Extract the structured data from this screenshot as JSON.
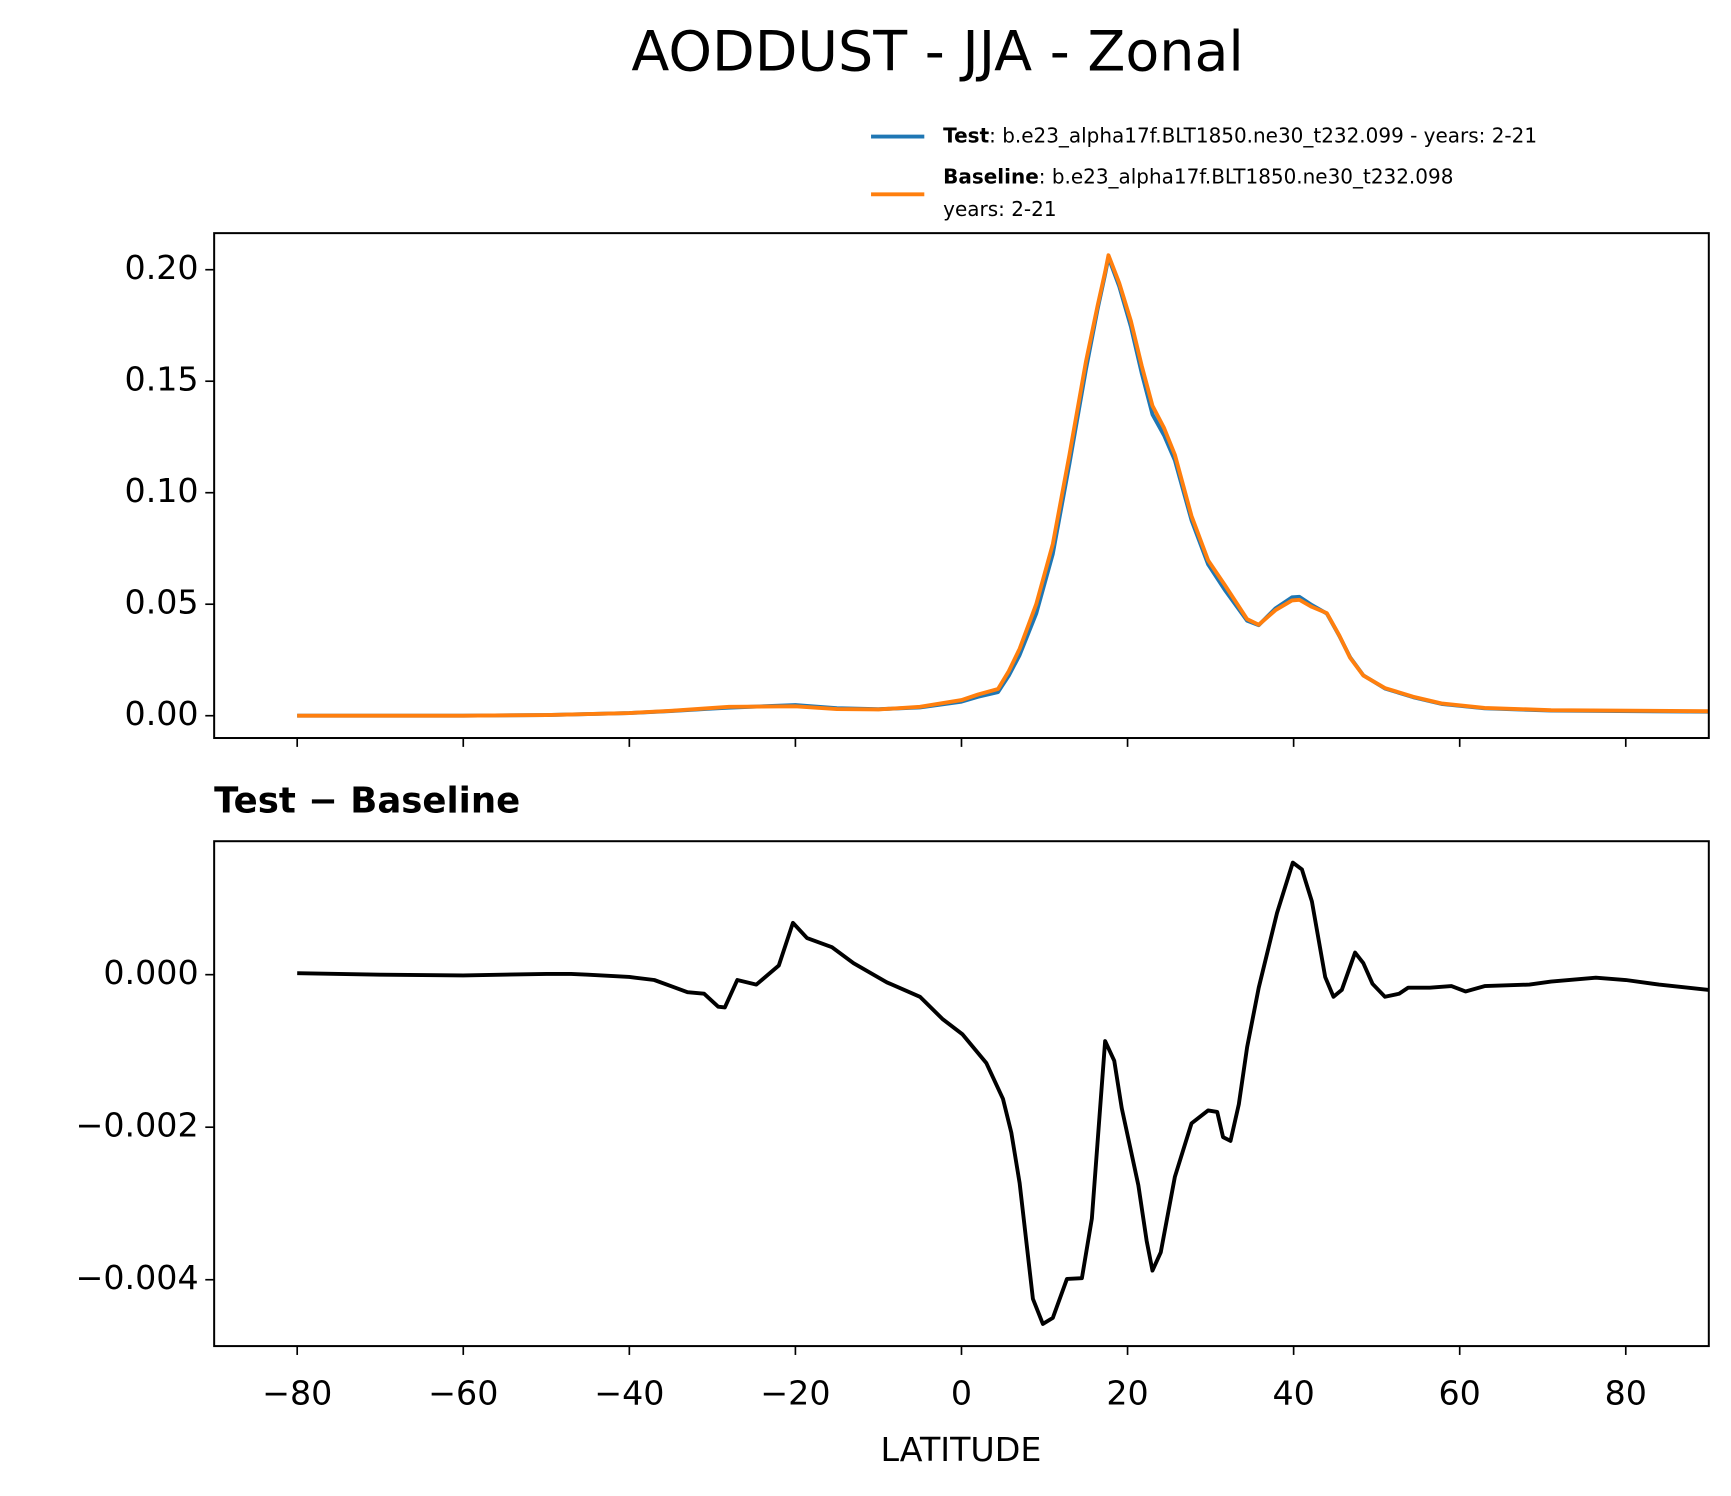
{
  "chart_data": [
    {
      "type": "line",
      "title": "AODDUST - JJA - Zonal",
      "x": [
        -80,
        -60,
        -50,
        -40,
        -35,
        -30,
        -28,
        -20,
        -15,
        -10,
        -5,
        0,
        2,
        4.4,
        5.7,
        7,
        9,
        11,
        13,
        15,
        16.4,
        17.3,
        17.7,
        19,
        20.4,
        21.7,
        23,
        24.4,
        25.7,
        27.7,
        29.7,
        31.7,
        34.4,
        35.8,
        37.8,
        39.8,
        40.7,
        42.2,
        44,
        45.5,
        46.8,
        48.4,
        51,
        54.4,
        57.8,
        63,
        71,
        90
      ],
      "series": [
        {
          "name": "Test",
          "description": [
            ": b.e23_alpha17f.BLT1850.ne30_t232.099 - years: 2-21"
          ],
          "color": "#1f77b4",
          "values": [
            0,
            0,
            0.0003,
            0.0012,
            0.0021,
            0.0032,
            0.0036,
            0.0048,
            0.0034,
            0.0029,
            0.0037,
            0.0063,
            0.0085,
            0.0106,
            0.018,
            0.0272,
            0.0458,
            0.0726,
            0.113,
            0.1555,
            0.1825,
            0.198,
            0.2055,
            0.1925,
            0.1745,
            0.1537,
            0.1351,
            0.1257,
            0.1145,
            0.0877,
            0.0679,
            0.0565,
            0.0426,
            0.0406,
            0.0481,
            0.0531,
            0.0533,
            0.0496,
            0.0458,
            0.0358,
            0.0262,
            0.0181,
            0.0122,
            0.0083,
            0.0053,
            0.0033,
            0.0023,
            0.0018
          ]
        },
        {
          "name": "Baseline",
          "description": [
            ": b.e23_alpha17f.BLT1850.ne30_t232.098",
            "years: 2-21"
          ],
          "color": "#ff7f0e",
          "values": [
            0,
            0,
            0.0003,
            0.0012,
            0.0022,
            0.0035,
            0.004,
            0.0042,
            0.003,
            0.0028,
            0.004,
            0.007,
            0.0095,
            0.012,
            0.02,
            0.03,
            0.05,
            0.077,
            0.117,
            0.159,
            0.184,
            0.199,
            0.2065,
            0.194,
            0.177,
            0.157,
            0.139,
            0.129,
            0.117,
            0.0896,
            0.0697,
            0.0587,
            0.0433,
            0.0408,
            0.0473,
            0.0517,
            0.052,
            0.0488,
            0.046,
            0.036,
            0.026,
            0.018,
            0.0124,
            0.0085,
            0.0055,
            0.0035,
            0.0025,
            0.002
          ]
        }
      ],
      "xlim": [
        -90,
        90
      ],
      "ylim": [
        -0.01,
        0.2164
      ],
      "yticks": [
        {
          "value": 0,
          "label": "0.00"
        },
        {
          "value": 0.05,
          "label": "0.05"
        },
        {
          "value": 0.1,
          "label": "0.10"
        },
        {
          "value": 0.15,
          "label": "0.15"
        },
        {
          "value": 0.2,
          "label": "0.20"
        }
      ]
    },
    {
      "type": "line",
      "title": "Test − Baseline",
      "xlabel": "LATITUDE",
      "color": "#000000",
      "x": [
        -80,
        -70,
        -60,
        -50,
        -47,
        -45,
        -40,
        -37,
        -35,
        -33,
        -31,
        -29.3,
        -28.5,
        -27,
        -24.7,
        -22,
        -20.3,
        -18.6,
        -15.6,
        -13,
        -9,
        -5,
        -2.3,
        0.1,
        3,
        5,
        6,
        7,
        8.6,
        9.8,
        11,
        12.7,
        14.5,
        15.7,
        17.3,
        18.4,
        19.3,
        21.3,
        22.3,
        23,
        24,
        25.7,
        27.7,
        29.7,
        30.8,
        31.5,
        32.4,
        33.4,
        34.4,
        35.8,
        38,
        39.9,
        41,
        42.2,
        43.8,
        44.8,
        45.8,
        47.4,
        48.4,
        49.5,
        51,
        52.7,
        53.8,
        56.4,
        59,
        60.7,
        63,
        68.4,
        71,
        76.4,
        80,
        84,
        90
      ],
      "values": [
        2e-05,
        0,
        -1e-05,
        1e-05,
        1e-05,
        0,
        -3e-05,
        -7e-05,
        -0.00015,
        -0.00023,
        -0.00025,
        -0.00042,
        -0.00043,
        -7e-05,
        -0.00013,
        0.00012,
        0.00068,
        0.00048,
        0.00036,
        0.00015,
        -0.0001,
        -0.00029,
        -0.00058,
        -0.00078,
        -0.00116,
        -0.00163,
        -0.00207,
        -0.00273,
        -0.00425,
        -0.00458,
        -0.0045,
        -0.00399,
        -0.00398,
        -0.0032,
        -0.00087,
        -0.00113,
        -0.00175,
        -0.00276,
        -0.00349,
        -0.00388,
        -0.00364,
        -0.00265,
        -0.00195,
        -0.00178,
        -0.0018,
        -0.00213,
        -0.00218,
        -0.0017,
        -0.00095,
        -0.00017,
        0.00081,
        0.00147,
        0.00138,
        0.00096,
        -3e-05,
        -0.00029,
        -0.0002,
        0.00029,
        0.00015,
        -0.00012,
        -0.00029,
        -0.00025,
        -0.00017,
        -0.00017,
        -0.00015,
        -0.00022,
        -0.00015,
        -0.00013,
        -9e-05,
        -4e-05,
        -7e-05,
        -0.00013,
        -0.0002
      ],
      "xlim": [
        -90,
        90
      ],
      "ylim": [
        -0.00487,
        0.00175
      ],
      "xticks": [
        {
          "value": -80,
          "label": "−80"
        },
        {
          "value": -60,
          "label": "−60"
        },
        {
          "value": -40,
          "label": "−40"
        },
        {
          "value": -20,
          "label": "−20"
        },
        0,
        20,
        40,
        60,
        80
      ],
      "yticks": [
        {
          "value": -0.004,
          "label": "−0.004"
        },
        {
          "value": -0.002,
          "label": "−0.002"
        },
        {
          "value": 0,
          "label": "0.000"
        }
      ]
    }
  ]
}
